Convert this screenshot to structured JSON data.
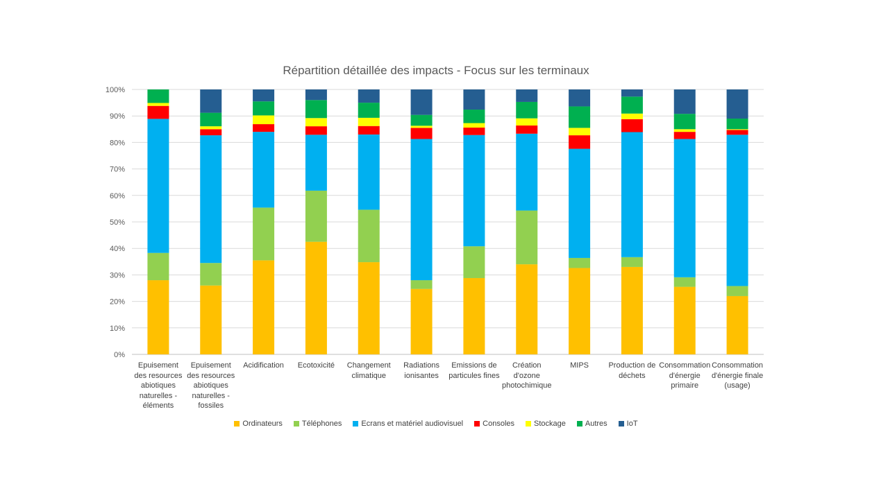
{
  "chart_data": {
    "type": "bar",
    "stacked": true,
    "normalized": true,
    "title": "Répartition détaillée des impacts - Focus sur les terminaux",
    "xlabel": "",
    "ylabel": "",
    "ylim": [
      0,
      100
    ],
    "y_ticks": [
      "0%",
      "10%",
      "20%",
      "30%",
      "40%",
      "50%",
      "60%",
      "70%",
      "80%",
      "90%",
      "100%"
    ],
    "grid": true,
    "legend_position": "bottom",
    "categories": [
      [
        "Epuisement",
        "des resources",
        "abiotiques",
        "naturelles -",
        "éléments"
      ],
      [
        "Epuisement",
        "des resources",
        "abiotiques",
        "naturelles -",
        "fossiles"
      ],
      [
        "Acidification"
      ],
      [
        "Ecotoxicité"
      ],
      [
        "Changement",
        "climatique"
      ],
      [
        "Radiations",
        "ionisantes"
      ],
      [
        "Emissions de",
        "particules fines"
      ],
      [
        "Création",
        "d'ozone",
        "photochimique"
      ],
      [
        "MIPS"
      ],
      [
        "Production de",
        "déchets"
      ],
      [
        "Consommation",
        "d'énergie",
        "primaire"
      ],
      [
        "Consommation",
        "d'énergie finale",
        "(usage)"
      ]
    ],
    "series": [
      {
        "name": "Ordinateurs",
        "color": "#FFC000",
        "values": [
          28.0,
          26.0,
          35.5,
          42.5,
          34.8,
          24.7,
          28.8,
          34.0,
          32.6,
          33.0,
          25.5,
          22.0
        ]
      },
      {
        "name": "Téléphones",
        "color": "#92D050",
        "values": [
          10.3,
          8.5,
          19.9,
          19.3,
          19.8,
          3.3,
          12.0,
          20.3,
          3.8,
          3.7,
          3.6,
          3.8
        ]
      },
      {
        "name": "Ecrans et matériel audiovisuel",
        "color": "#00B0F0",
        "values": [
          50.6,
          48.2,
          28.6,
          21.1,
          28.4,
          53.3,
          42.0,
          29.0,
          41.2,
          47.2,
          52.2,
          57.1
        ]
      },
      {
        "name": "Consoles",
        "color": "#FF0000",
        "values": [
          4.9,
          2.3,
          2.9,
          3.2,
          3.2,
          4.2,
          2.8,
          3.1,
          5.1,
          4.9,
          2.7,
          1.8
        ]
      },
      {
        "name": "Stockage",
        "color": "#FFFF00",
        "values": [
          1.1,
          1.1,
          3.3,
          3.1,
          3.1,
          0.8,
          1.7,
          2.7,
          2.8,
          2.1,
          1.0,
          0.3
        ]
      },
      {
        "name": "Autres",
        "color": "#00B050",
        "values": [
          5.1,
          5.1,
          5.3,
          6.8,
          5.7,
          4.1,
          5.1,
          6.2,
          8.1,
          6.4,
          5.8,
          4.0
        ]
      },
      {
        "name": "IoT",
        "color": "#255E91",
        "values": [
          0.0,
          8.8,
          4.5,
          4.0,
          5.0,
          9.6,
          7.6,
          4.7,
          6.4,
          2.7,
          9.2,
          11.0
        ]
      }
    ]
  }
}
